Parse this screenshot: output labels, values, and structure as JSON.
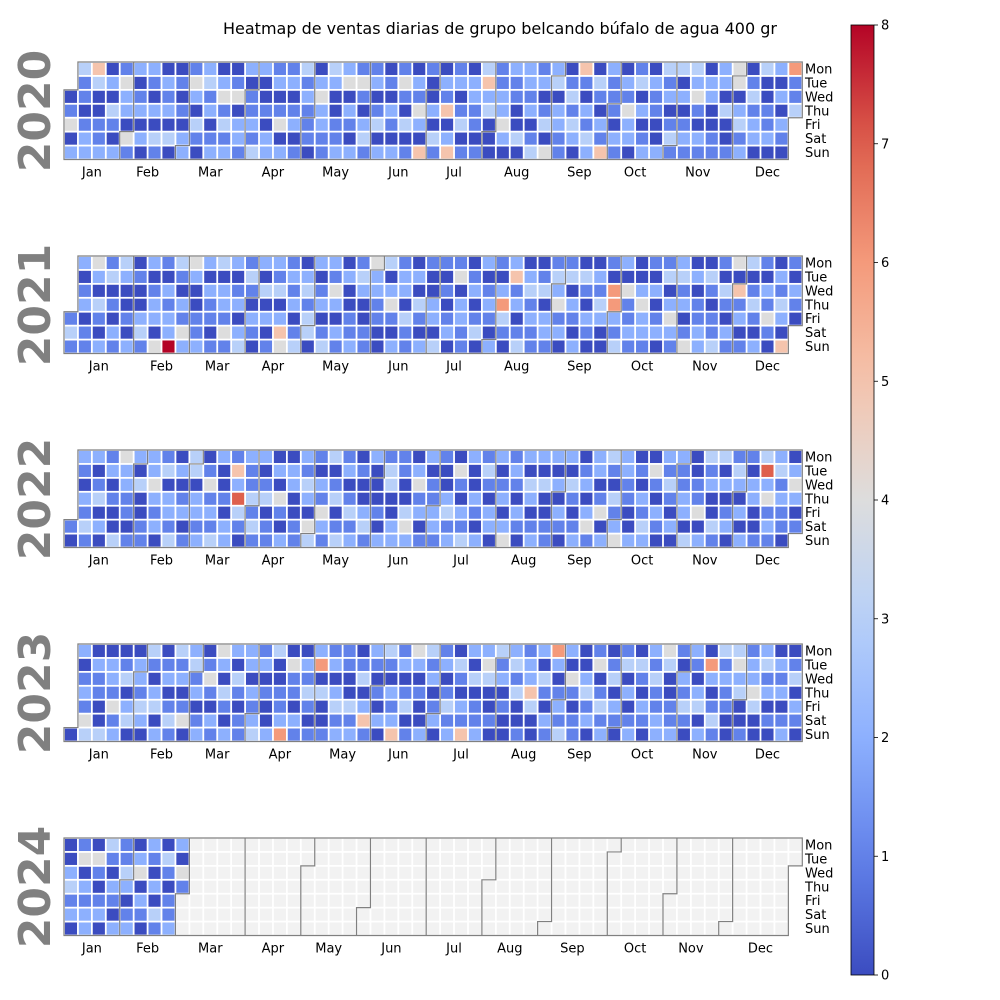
{
  "chart_data": {
    "type": "heatmap",
    "title": "Heatmap de ventas diarias de grupo belcando búfalo de agua 400 gr",
    "years": [
      "2020",
      "2021",
      "2022",
      "2023",
      "2024"
    ],
    "weekday_labels": [
      "Mon",
      "Tue",
      "Wed",
      "Thu",
      "Fri",
      "Sat",
      "Sun"
    ],
    "month_labels": [
      "Jan",
      "Feb",
      "Mar",
      "Apr",
      "May",
      "Jun",
      "Jul",
      "Aug",
      "Sep",
      "Oct",
      "Nov",
      "Dec"
    ],
    "colorbar": {
      "min": 0,
      "max": 8,
      "ticks": [
        "0",
        "1",
        "2",
        "3",
        "4",
        "5",
        "6",
        "7",
        "8"
      ],
      "colormap": "coolwarm"
    },
    "data_end": "2024-02-29",
    "missing_color": "#f2f2f2",
    "notable_values": [
      {
        "date": "2021-02-21",
        "value": 8
      },
      {
        "date": "2022-03-24",
        "value": 7
      },
      {
        "date": "2022-12-13",
        "value": 7
      },
      {
        "date": "2020-12-28",
        "value": 6
      },
      {
        "date": "2021-09-29",
        "value": 6
      },
      {
        "date": "2021-09-30",
        "value": 6
      },
      {
        "date": "2021-08-05",
        "value": 6
      },
      {
        "date": "2023-04-16",
        "value": 6
      },
      {
        "date": "2023-05-02",
        "value": 6
      },
      {
        "date": "2023-08-28",
        "value": 6
      },
      {
        "date": "2023-11-14",
        "value": 6
      }
    ]
  }
}
